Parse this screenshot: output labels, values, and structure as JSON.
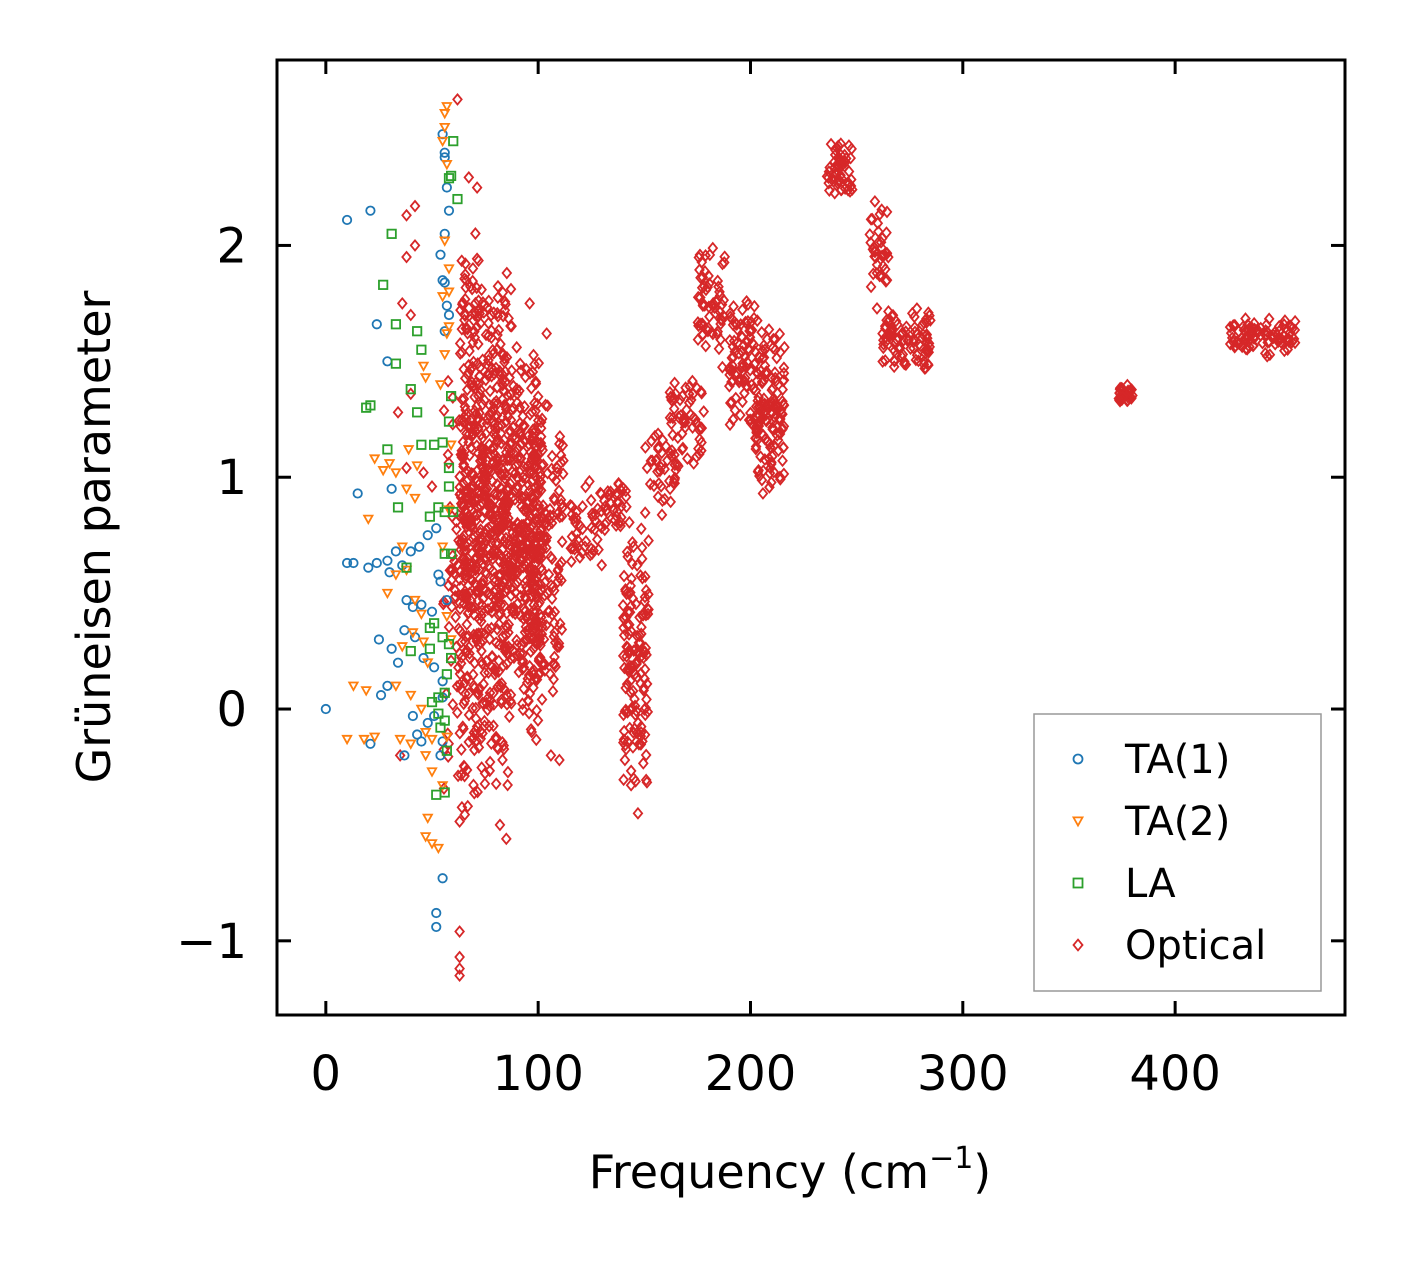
{
  "chart_data": {
    "type": "scatter",
    "title": "",
    "xlabel": "Frequency (cm",
    "xlabel_sup": "−1",
    "xlabel_close": ")",
    "ylabel": "Grüneisen parameter",
    "xlim": [
      -23,
      480
    ],
    "ylim": [
      -1.32,
      2.8
    ],
    "xticks": [
      0,
      100,
      200,
      300,
      400
    ],
    "yticks": [
      -1,
      0,
      1,
      2
    ],
    "xtick_labels": [
      "0",
      "100",
      "200",
      "300",
      "400"
    ],
    "ytick_labels": [
      "−1",
      "0",
      "1",
      "2"
    ],
    "grid": false,
    "legend_position": "bottom-right",
    "series": [
      {
        "name": "TA(1)",
        "marker": "circle",
        "color": "#1f77b4",
        "points": [
          [
            0,
            0
          ],
          [
            10,
            2.11
          ],
          [
            21,
            2.15
          ],
          [
            24,
            1.66
          ],
          [
            29,
            1.5
          ],
          [
            15,
            0.93
          ],
          [
            31,
            0.95
          ],
          [
            10,
            0.63
          ],
          [
            13,
            0.63
          ],
          [
            20,
            0.61
          ],
          [
            24,
            0.63
          ],
          [
            29,
            0.64
          ],
          [
            33,
            0.68
          ],
          [
            30,
            0.59
          ],
          [
            36,
            0.62
          ],
          [
            40,
            0.68
          ],
          [
            44,
            0.7
          ],
          [
            48,
            0.75
          ],
          [
            52,
            0.78
          ],
          [
            54,
            0.55
          ],
          [
            50,
            0.42
          ],
          [
            45,
            0.45
          ],
          [
            41,
            0.44
          ],
          [
            38,
            0.47
          ],
          [
            25,
            0.3
          ],
          [
            31,
            0.26
          ],
          [
            34,
            0.2
          ],
          [
            29,
            0.1
          ],
          [
            37,
            0.34
          ],
          [
            42,
            0.31
          ],
          [
            46,
            0.22
          ],
          [
            51,
            0.18
          ],
          [
            55,
            0.12
          ],
          [
            26,
            0.06
          ],
          [
            21,
            -0.15
          ],
          [
            37,
            -0.2
          ],
          [
            41,
            -0.03
          ],
          [
            43,
            -0.11
          ],
          [
            45,
            -0.14
          ],
          [
            48,
            -0.06
          ],
          [
            51,
            -0.03
          ],
          [
            55,
            -0.14
          ],
          [
            54,
            -0.2
          ],
          [
            52,
            -0.88
          ],
          [
            52,
            -0.94
          ],
          [
            55,
            -0.73
          ],
          [
            54,
            1.96
          ],
          [
            56,
            2.05
          ],
          [
            56,
            2.38
          ],
          [
            56,
            2.4
          ],
          [
            55,
            2.48
          ],
          [
            57,
            2.25
          ],
          [
            58,
            2.15
          ],
          [
            55,
            1.85
          ],
          [
            56,
            1.84
          ],
          [
            57,
            1.74
          ],
          [
            58,
            1.7
          ],
          [
            56,
            1.63
          ],
          [
            53,
            0.58
          ],
          [
            57,
            0.47
          ],
          [
            55,
            0.05
          ]
        ]
      },
      {
        "name": "TA(2)",
        "marker": "triangle-down",
        "color": "#ff7f0e",
        "points": [
          [
            10,
            -0.13
          ],
          [
            18,
            -0.13
          ],
          [
            23,
            -0.12
          ],
          [
            13,
            0.1
          ],
          [
            19,
            0.08
          ],
          [
            23,
            1.08
          ],
          [
            27,
            1.03
          ],
          [
            30,
            1.06
          ],
          [
            33,
            1.02
          ],
          [
            39,
            1.12
          ],
          [
            43,
            1.05
          ],
          [
            38,
            0.95
          ],
          [
            42,
            0.91
          ],
          [
            36,
            0.7
          ],
          [
            33,
            0.58
          ],
          [
            29,
            0.5
          ],
          [
            38,
            0.6
          ],
          [
            42,
            0.47
          ],
          [
            45,
            0.41
          ],
          [
            46,
            0.29
          ],
          [
            48,
            0.2
          ],
          [
            41,
            0.33
          ],
          [
            36,
            0.27
          ],
          [
            33,
            0.1
          ],
          [
            40,
            0.06
          ],
          [
            45,
            0.0
          ],
          [
            47,
            -0.1
          ],
          [
            50,
            -0.13
          ],
          [
            40,
            -0.15
          ],
          [
            35,
            -0.13
          ],
          [
            47,
            -0.2
          ],
          [
            50,
            -0.27
          ],
          [
            48,
            -0.47
          ],
          [
            47,
            -0.55
          ],
          [
            50,
            -0.58
          ],
          [
            53,
            -0.6
          ],
          [
            55,
            -0.33
          ],
          [
            57,
            -0.12
          ],
          [
            57,
            0.4
          ],
          [
            58,
            0.86
          ],
          [
            59,
            1.14
          ],
          [
            58,
            1.9
          ],
          [
            56,
            2.02
          ],
          [
            57,
            2.35
          ],
          [
            55,
            2.45
          ],
          [
            56,
            2.57
          ],
          [
            57,
            2.6
          ],
          [
            56,
            2.51
          ],
          [
            58,
            1.8
          ],
          [
            57,
            1.62
          ],
          [
            55,
            1.78
          ],
          [
            56,
            1.53
          ],
          [
            55,
            0.7
          ],
          [
            59,
            0.3
          ],
          [
            54,
            1.4
          ],
          [
            58,
            1.65
          ],
          [
            47,
            1.43
          ],
          [
            46,
            1.48
          ],
          [
            20,
            0.82
          ]
        ]
      },
      {
        "name": "LA",
        "marker": "square",
        "color": "#2ca02c",
        "points": [
          [
            31,
            2.05
          ],
          [
            27,
            1.83
          ],
          [
            33,
            1.66
          ],
          [
            33,
            1.49
          ],
          [
            19,
            1.3
          ],
          [
            21,
            1.31
          ],
          [
            29,
            1.12
          ],
          [
            43,
            1.28
          ],
          [
            43,
            1.63
          ],
          [
            45,
            1.55
          ],
          [
            40,
            1.38
          ],
          [
            45,
            1.14
          ],
          [
            51,
            1.14
          ],
          [
            55,
            1.15
          ],
          [
            58,
            1.24
          ],
          [
            59,
            1.35
          ],
          [
            58,
            1.04
          ],
          [
            58,
            0.96
          ],
          [
            56,
            0.85
          ],
          [
            53,
            0.87
          ],
          [
            49,
            0.83
          ],
          [
            56,
            0.67
          ],
          [
            59,
            0.67
          ],
          [
            60,
            0.85
          ],
          [
            34,
            0.87
          ],
          [
            38,
            0.61
          ],
          [
            40,
            0.25
          ],
          [
            49,
            0.26
          ],
          [
            49,
            0.35
          ],
          [
            51,
            0.37
          ],
          [
            55,
            0.31
          ],
          [
            58,
            0.28
          ],
          [
            59,
            0.22
          ],
          [
            57,
            0.15
          ],
          [
            56,
            0.07
          ],
          [
            53,
            0.05
          ],
          [
            50,
            0.03
          ],
          [
            53,
            -0.02
          ],
          [
            56,
            -0.05
          ],
          [
            54,
            -0.08
          ],
          [
            57,
            -0.18
          ],
          [
            52,
            -0.37
          ],
          [
            56,
            -0.36
          ],
          [
            58,
            2.29
          ],
          [
            60,
            2.45
          ],
          [
            62,
            2.2
          ],
          [
            59,
            2.3
          ]
        ]
      },
      {
        "name": "Optical",
        "marker": "diamond",
        "color": "#d62728",
        "points": [],
        "clusters": [
          {
            "x": [
              63,
              72
            ],
            "y": [
              -0.6,
              2.36
            ],
            "n": 280
          },
          {
            "x": [
              72,
              88
            ],
            "y": [
              -0.4,
              2.0
            ],
            "n": 460
          },
          {
            "x": [
              88,
              102
            ],
            "y": [
              -0.2,
              1.6
            ],
            "n": 320
          },
          {
            "x": [
              96,
              112
            ],
            "y": [
              0.0,
              1.4
            ],
            "n": 140
          },
          {
            "x": [
              55,
              68
            ],
            "y": [
              -0.7,
              1.8
            ],
            "n": 70
          },
          {
            "x": [
              115,
              130
            ],
            "y": [
              0.6,
              1.0
            ],
            "n": 40
          },
          {
            "x": [
              128,
              142
            ],
            "y": [
              0.75,
              1.0
            ],
            "n": 36
          },
          {
            "x": [
              140,
              152
            ],
            "y": [
              -0.45,
              0.9
            ],
            "n": 140
          },
          {
            "x": [
              150,
              165
            ],
            "y": [
              0.8,
              1.25
            ],
            "n": 40
          },
          {
            "x": [
              162,
              178
            ],
            "y": [
              1.0,
              1.5
            ],
            "n": 60
          },
          {
            "x": [
              175,
              188
            ],
            "y": [
              1.45,
              2.02
            ],
            "n": 60
          },
          {
            "x": [
              190,
              202
            ],
            "y": [
              1.15,
              1.88
            ],
            "n": 80
          },
          {
            "x": [
              202,
              216
            ],
            "y": [
              0.85,
              1.72
            ],
            "n": 150
          },
          {
            "x": [
              236,
              248
            ],
            "y": [
              2.2,
              2.45
            ],
            "n": 50
          },
          {
            "x": [
              256,
              265
            ],
            "y": [
              1.7,
              2.2
            ],
            "n": 40
          },
          {
            "x": [
              262,
              285
            ],
            "y": [
              1.45,
              1.75
            ],
            "n": 90
          },
          {
            "x": [
              373,
              380
            ],
            "y": [
              1.32,
              1.4
            ],
            "n": 40
          },
          {
            "x": [
              425,
              457
            ],
            "y": [
              1.52,
              1.7
            ],
            "n": 90
          }
        ],
        "extra_points": [
          [
            62,
            2.63
          ],
          [
            38,
            2.13
          ],
          [
            42,
            2.17
          ],
          [
            38,
            1.95
          ],
          [
            42,
            2.0
          ],
          [
            36,
            1.75
          ],
          [
            40,
            1.7
          ],
          [
            34,
            1.28
          ],
          [
            40,
            1.36
          ],
          [
            38,
            1.04
          ],
          [
            46,
            1.02
          ],
          [
            50,
            0.96
          ],
          [
            35,
            -0.2
          ],
          [
            63,
            -0.96
          ],
          [
            63,
            -1.07
          ],
          [
            63,
            -1.12
          ],
          [
            63,
            -1.15
          ],
          [
            85,
            -0.56
          ],
          [
            82,
            -0.5
          ],
          [
            96,
            1.75
          ],
          [
            104,
            1.62
          ],
          [
            122,
            0.7
          ],
          [
            110,
            -0.22
          ],
          [
            106,
            -0.2
          ],
          [
            145,
            -0.3
          ],
          [
            147,
            -0.45
          ]
        ]
      }
    ]
  }
}
